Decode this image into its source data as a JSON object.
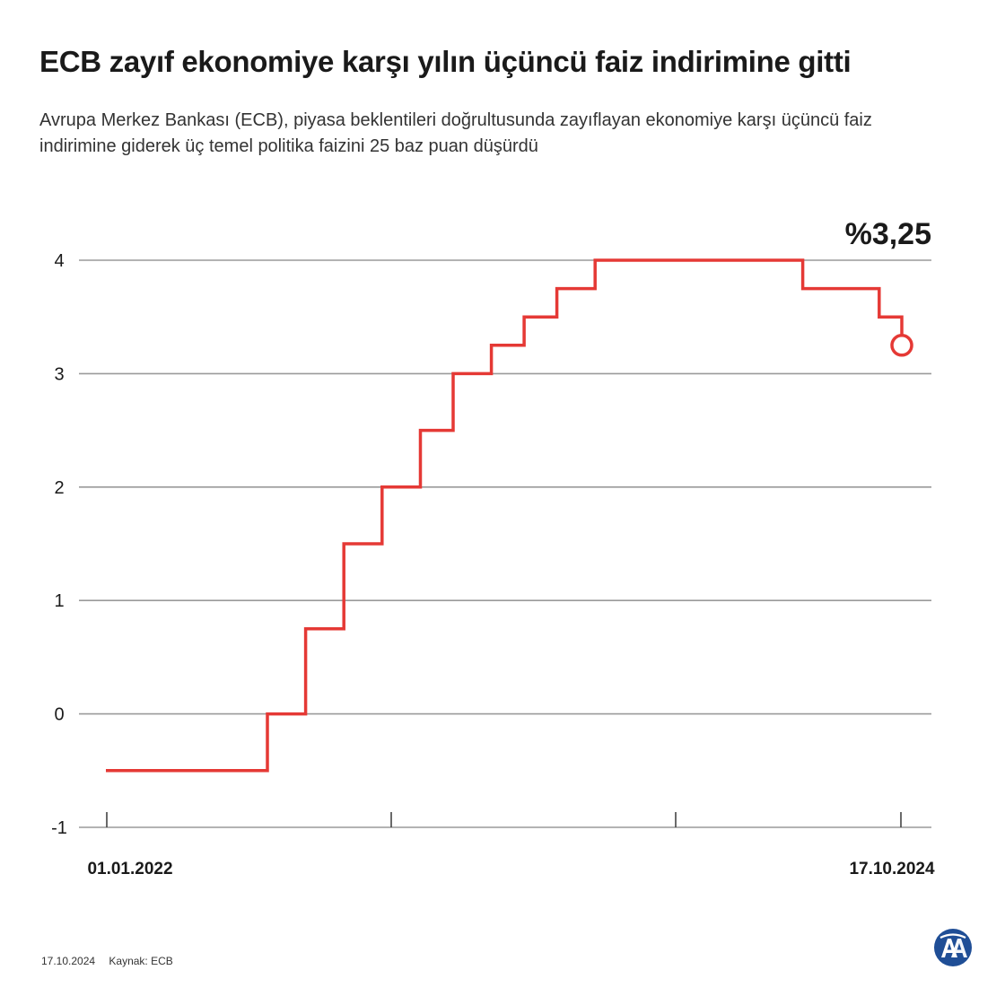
{
  "header": {
    "title": "ECB zayıf ekonomiye karşı yılın üçüncü faiz indirimine gitti",
    "subtitle": "Avrupa Merkez Bankası (ECB), piyasa beklentileri doğrultusunda zayıflayan ekonomiye karşı üçüncü faiz indirimine giderek üç temel politika faizini 25 baz puan düşürdü"
  },
  "chart_data": {
    "type": "line",
    "step": true,
    "title": "",
    "xlabel": "",
    "ylabel": "",
    "ylim": [
      -1,
      4
    ],
    "yticks": [
      "4",
      "3",
      "2",
      "1",
      "0",
      "-1"
    ],
    "x_start_label": "01.01.2022",
    "x_end_label": "17.10.2024",
    "grid": true,
    "last_value_label": "%3,25",
    "line_color": "#e53935",
    "series": [
      {
        "values": [
          {
            "x": "2022-01-01",
            "y": -0.5
          },
          {
            "x": "2022-07-27",
            "y": 0.0
          },
          {
            "x": "2022-09-14",
            "y": 0.75
          },
          {
            "x": "2022-11-02",
            "y": 1.5
          },
          {
            "x": "2022-12-21",
            "y": 2.0
          },
          {
            "x": "2023-02-08",
            "y": 2.5
          },
          {
            "x": "2023-03-22",
            "y": 3.0
          },
          {
            "x": "2023-05-10",
            "y": 3.25
          },
          {
            "x": "2023-06-21",
            "y": 3.5
          },
          {
            "x": "2023-08-02",
            "y": 3.75
          },
          {
            "x": "2023-09-20",
            "y": 4.0
          },
          {
            "x": "2024-06-12",
            "y": 3.75
          },
          {
            "x": "2024-09-18",
            "y": 3.5
          },
          {
            "x": "2024-10-17",
            "y": 3.25
          }
        ]
      }
    ]
  },
  "footer": {
    "date": "17.10.2024",
    "source": "Kaynak: ECB"
  },
  "logo": {
    "icon": "aa-logo-icon",
    "color": "#1f4e96"
  }
}
